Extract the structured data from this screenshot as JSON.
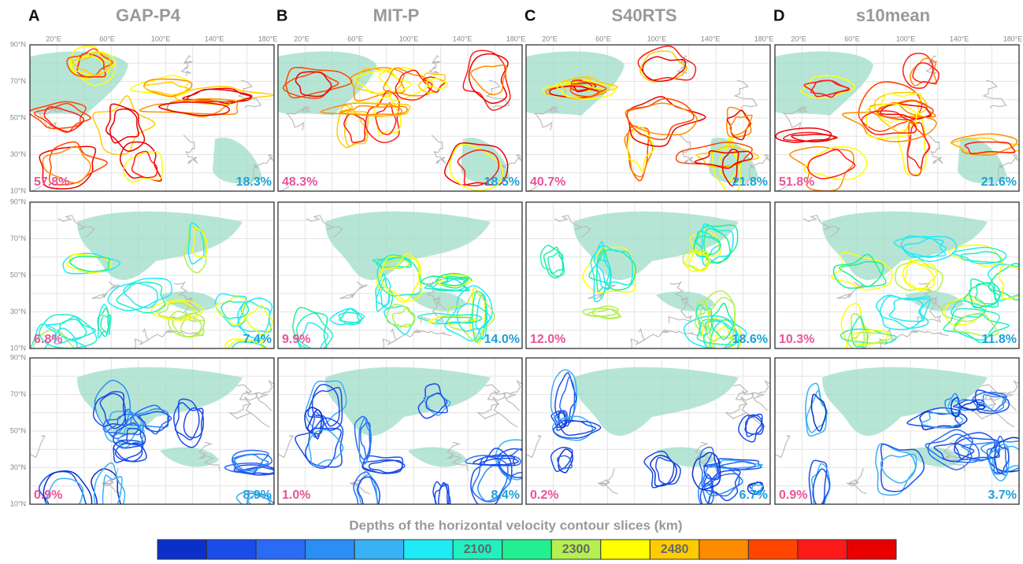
{
  "columns": [
    {
      "letter": "A",
      "title": "GAP-P4",
      "percentages": [
        {
          "left": "57.8%",
          "right": "18.3%"
        },
        {
          "left": "6.8%",
          "right": "7.4%"
        },
        {
          "left": "0.9%",
          "right": "8.9%"
        }
      ]
    },
    {
      "letter": "B",
      "title": "MIT-P",
      "percentages": [
        {
          "left": "48.3%",
          "right": "18.5%"
        },
        {
          "left": "9.9%",
          "right": "14.0%"
        },
        {
          "left": "1.0%",
          "right": "8.4%"
        }
      ]
    },
    {
      "letter": "C",
      "title": "S40RTS",
      "percentages": [
        {
          "left": "40.7%",
          "right": "21.8%"
        },
        {
          "left": "12.0%",
          "right": "18.6%"
        },
        {
          "left": "0.2%",
          "right": "6.7%"
        }
      ]
    },
    {
      "letter": "D",
      "title": "s10mean",
      "percentages": [
        {
          "left": "51.8%",
          "right": "21.6%"
        },
        {
          "left": "10.3%",
          "right": "11.8%"
        },
        {
          "left": "0.9%",
          "right": "3.7%"
        }
      ]
    }
  ],
  "longitude_labels": [
    "20°E",
    "60°E",
    "100°E",
    "140°E",
    "180°E"
  ],
  "latitude_labels": [
    "90°N",
    "70°N",
    "50°N",
    "30°N",
    "10°N"
  ],
  "colorbar": {
    "title": "Depths of the horizontal velocity contour slices (km)",
    "colors": [
      "#0b2fc9",
      "#1b4de8",
      "#2a6bf5",
      "#2a8ef5",
      "#39b1f5",
      "#20eaf5",
      "#22f0c0",
      "#20f090",
      "#b4f050",
      "#ffff00",
      "#ffcc00",
      "#ff8c00",
      "#ff4500",
      "#ff1a1a",
      "#e80000"
    ],
    "segment_labels": [
      null,
      null,
      null,
      null,
      null,
      null,
      "2100",
      null,
      "2300",
      null,
      "2480",
      null,
      null,
      null,
      null
    ]
  }
}
